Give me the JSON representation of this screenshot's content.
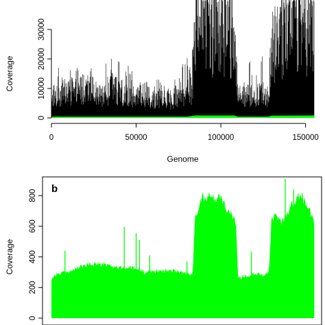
{
  "chart_data": [
    {
      "type": "area",
      "panel_label": "",
      "xlabel": "Genome",
      "ylabel": "Coverage",
      "xlim": [
        0,
        155000
      ],
      "ylim": [
        0,
        40000
      ],
      "x_ticks": [
        0,
        50000,
        100000,
        150000
      ],
      "x_tick_labels": [
        "0",
        "50000",
        "100000",
        "150000"
      ],
      "y_ticks": [
        0,
        10000,
        20000,
        30000
      ],
      "y_tick_labels": [
        "0",
        "10000",
        "20000",
        "30000"
      ],
      "series": [
        {
          "color": "#000000",
          "style": "spiky",
          "x": [
            0,
            5000,
            10000,
            15000,
            20000,
            25000,
            30000,
            35000,
            40000,
            45000,
            50000,
            55000,
            60000,
            65000,
            70000,
            75000,
            80000,
            83000,
            85000,
            90000,
            95000,
            100000,
            105000,
            108000,
            110000,
            115000,
            120000,
            125000,
            128000,
            130000,
            135000,
            140000,
            145000,
            150000,
            155000
          ],
          "values": [
            10000,
            9500,
            12000,
            11000,
            12500,
            11500,
            9000,
            12500,
            11000,
            11000,
            9500,
            10000,
            8500,
            9000,
            8000,
            9500,
            10500,
            12000,
            40000,
            40000,
            38000,
            40000,
            37000,
            36000,
            10000,
            10000,
            9500,
            10500,
            9000,
            30000,
            36000,
            38000,
            40000,
            40000,
            39000
          ],
          "peaks": [
            17000,
            17000,
            16000,
            17000,
            14000,
            19000,
            16500,
            21000,
            19000,
            18000,
            14000,
            16000,
            13000,
            13000,
            12000,
            15500,
            21000,
            21500,
            40000,
            40000,
            40000,
            40000,
            40000,
            40000,
            22000,
            20000,
            18000,
            23000,
            15000,
            33000,
            40000,
            40000,
            40000,
            40000,
            40000
          ]
        },
        {
          "color": "#00ff00",
          "style": "band",
          "x": [
            0,
            80000,
            85000,
            108000,
            110000,
            128000,
            130000,
            155000
          ],
          "values": [
            300,
            300,
            700,
            700,
            300,
            300,
            650,
            700
          ]
        }
      ]
    },
    {
      "type": "area",
      "panel_label": "b",
      "xlabel": "",
      "ylabel": "Coverage",
      "xlim": [
        0,
        155000
      ],
      "ylim": [
        0,
        900
      ],
      "x_ticks": [
        0,
        50000,
        100000,
        150000
      ],
      "y_ticks": [
        0,
        200,
        400,
        600,
        800
      ],
      "y_tick_labels": [
        "0",
        "200",
        "400",
        "600",
        "800"
      ],
      "series": [
        {
          "color": "#00ff00",
          "style": "smooth",
          "x": [
            0,
            2000,
            5000,
            10000,
            15000,
            20000,
            25000,
            30000,
            35000,
            40000,
            45000,
            50000,
            55000,
            60000,
            65000,
            70000,
            75000,
            80000,
            82000,
            83500,
            85000,
            88000,
            91000,
            94000,
            96000,
            99000,
            101000,
            104000,
            107000,
            109000,
            110000,
            113000,
            116000,
            119000,
            122000,
            125000,
            127000,
            128500,
            130000,
            133000,
            136000,
            139000,
            141000,
            144000,
            147000,
            149000,
            151000,
            153000,
            155000
          ],
          "values": [
            250,
            280,
            290,
            300,
            320,
            340,
            355,
            345,
            340,
            325,
            330,
            320,
            300,
            305,
            300,
            310,
            305,
            285,
            280,
            290,
            680,
            760,
            800,
            790,
            770,
            800,
            770,
            700,
            650,
            600,
            260,
            270,
            275,
            285,
            290,
            280,
            290,
            300,
            640,
            660,
            620,
            680,
            720,
            760,
            800,
            780,
            720,
            680,
            620
          ]
        }
      ],
      "spikes": [
        {
          "x": 8000,
          "value": 440
        },
        {
          "x": 43000,
          "value": 595
        },
        {
          "x": 50000,
          "value": 555
        },
        {
          "x": 52000,
          "value": 510
        },
        {
          "x": 58000,
          "value": 410
        },
        {
          "x": 80000,
          "value": 370
        },
        {
          "x": 118000,
          "value": 435
        },
        {
          "x": 138000,
          "value": 910
        },
        {
          "x": 143000,
          "value": 840
        }
      ]
    }
  ]
}
